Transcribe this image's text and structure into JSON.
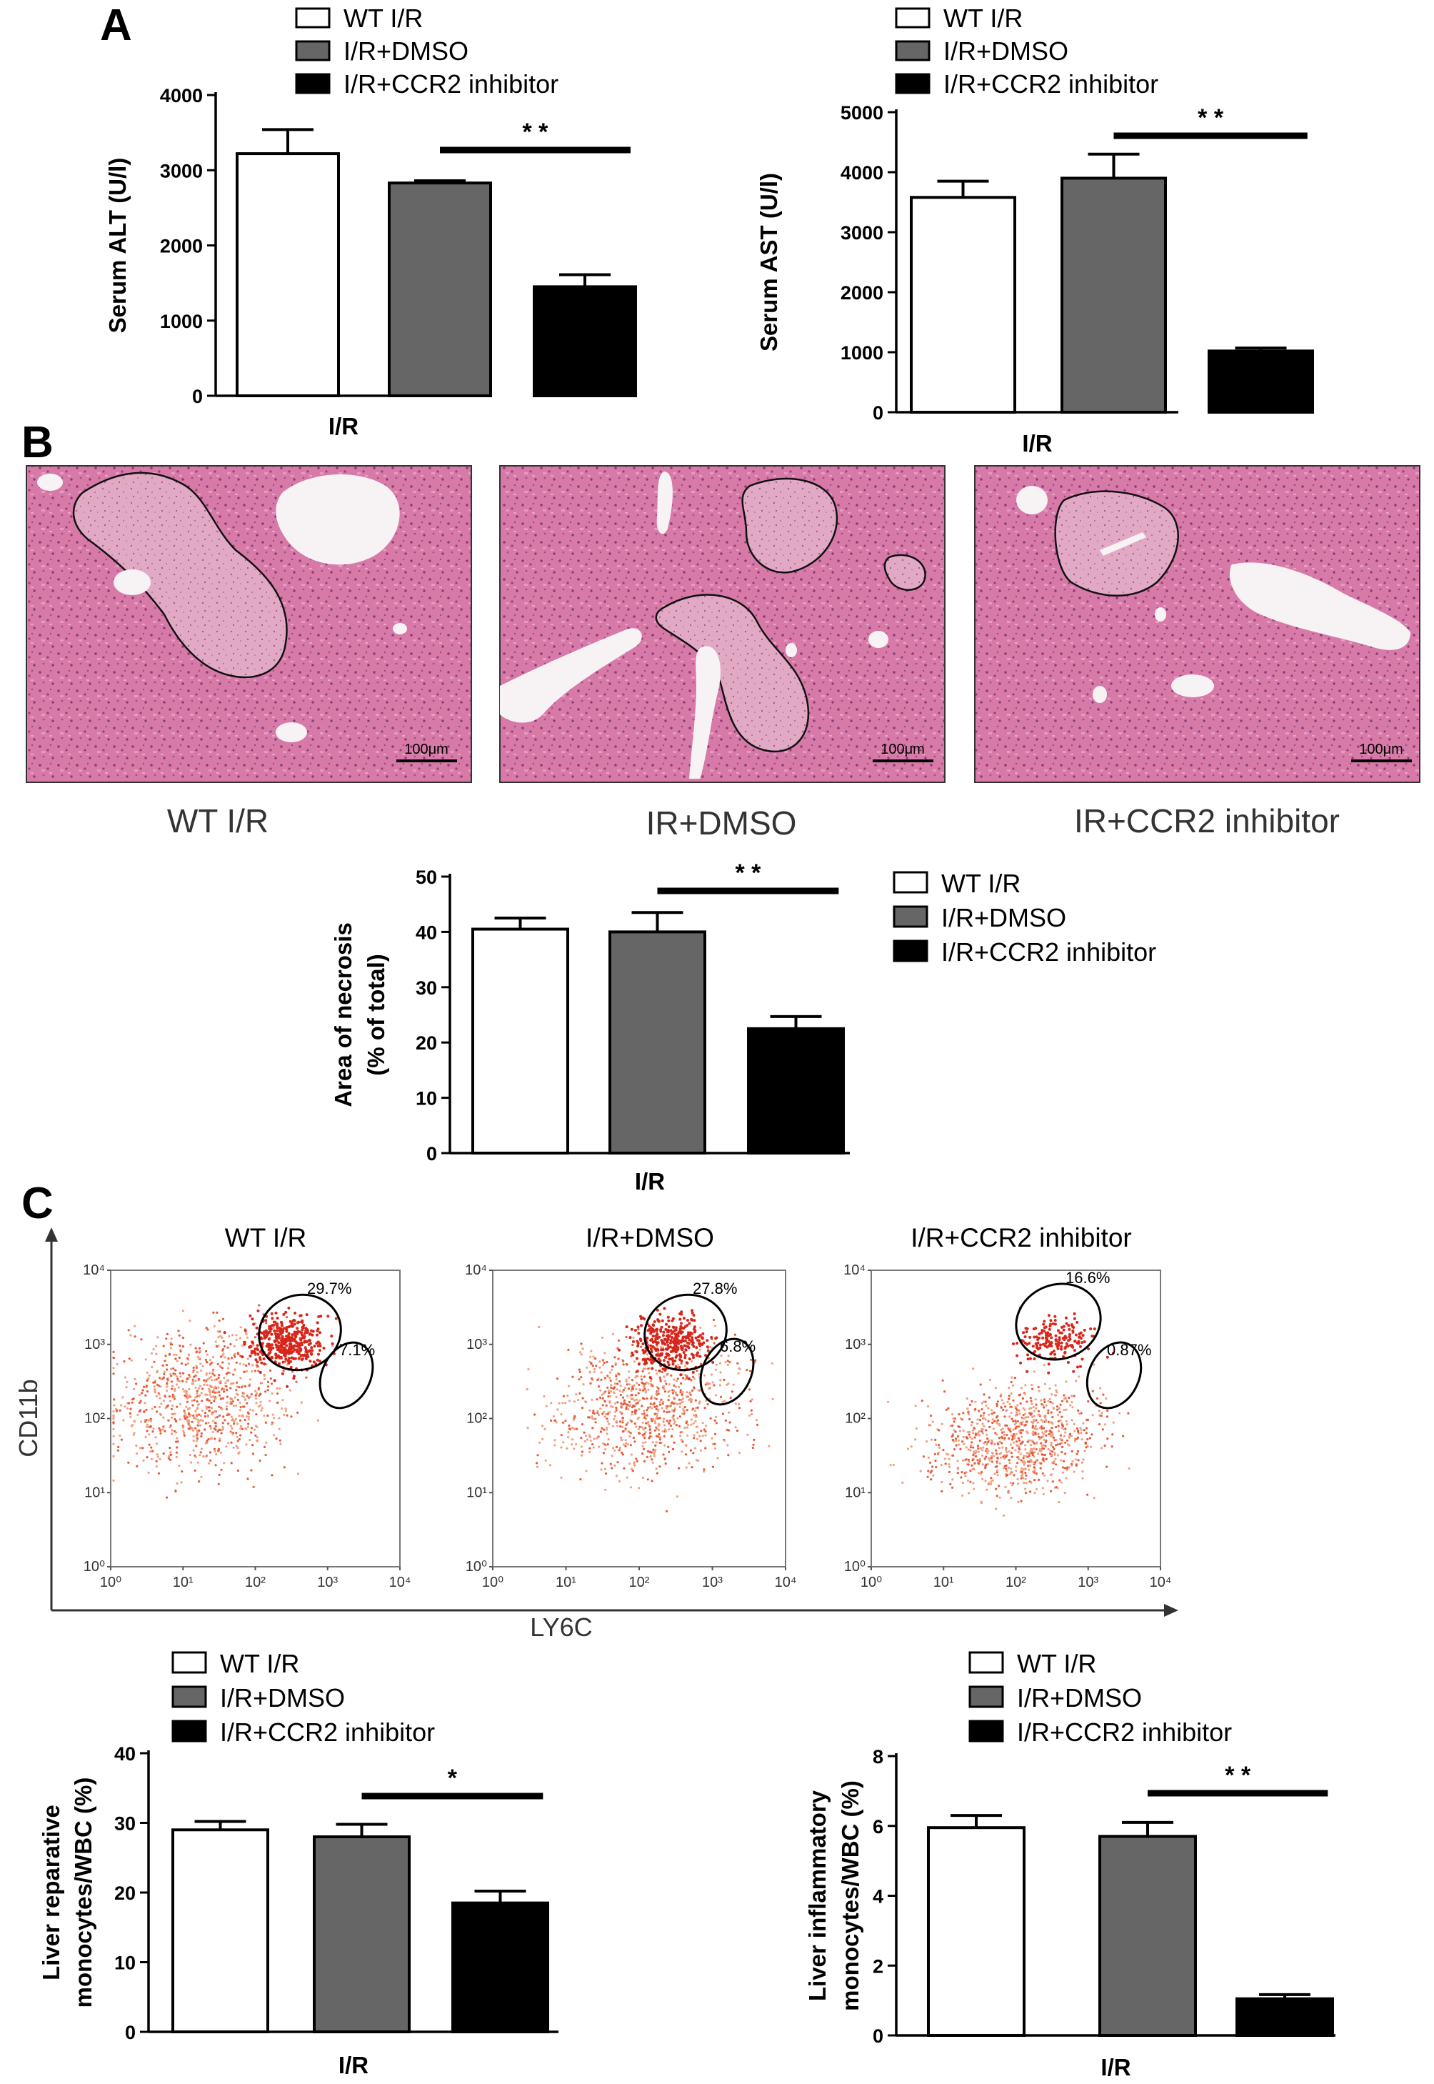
{
  "panels": {
    "a": "A",
    "b": "B",
    "c": "C"
  },
  "legend_groups": [
    "WT I/R",
    "I/R+DMSO",
    "I/R+CCR2 inhibitor"
  ],
  "colors": {
    "wt": "#ffffff",
    "dmso": "#666666",
    "ccr2": "#000000",
    "axis": "#000000",
    "dots": "#e23a1a"
  },
  "histology": {
    "captions": [
      "WT I/R",
      "IR+DMSO",
      "IR+CCR2 inhibitor"
    ],
    "scale_bar": "100μm"
  },
  "flow": {
    "y_label": "CD11b",
    "x_label": "LY6C",
    "tick_labels": [
      "10⁰",
      "10¹",
      "10²",
      "10³",
      "10⁴"
    ],
    "plots": [
      {
        "title": "WT I/R",
        "upper_gate_pct": "29.7%",
        "lower_gate_pct": "7.1%"
      },
      {
        "title": "I/R+DMSO",
        "upper_gate_pct": "27.8%",
        "lower_gate_pct": "6.8%"
      },
      {
        "title": "I/R+CCR2 inhibitor",
        "upper_gate_pct": "16.6%",
        "lower_gate_pct": "0.87%"
      }
    ]
  },
  "chart_data": [
    {
      "id": "alt",
      "type": "bar",
      "ylabel": "Serum ALT (U/l)",
      "xlabel": "I/R",
      "categories": [
        "WT I/R",
        "I/R+DMSO",
        "I/R+CCR2 inhibitor"
      ],
      "values": [
        3220,
        2830,
        1450
      ],
      "errors": [
        320,
        30,
        160
      ],
      "ylim": [
        0,
        4000
      ],
      "yticks": [
        0,
        1000,
        2000,
        3000,
        4000
      ],
      "significance": {
        "from": 1,
        "to": 2,
        "label": "* *"
      },
      "legend": "top"
    },
    {
      "id": "ast",
      "type": "bar",
      "ylabel": "Serum AST (U/l)",
      "xlabel": "I/R",
      "categories": [
        "WT I/R",
        "I/R+DMSO",
        "I/R+CCR2 inhibitor"
      ],
      "values": [
        3580,
        3900,
        1020
      ],
      "errors": [
        270,
        400,
        50
      ],
      "ylim": [
        0,
        5000
      ],
      "yticks": [
        0,
        1000,
        2000,
        3000,
        4000,
        5000
      ],
      "significance": {
        "from": 1,
        "to": 2,
        "label": "* *"
      },
      "legend": "top"
    },
    {
      "id": "necrosis",
      "type": "bar",
      "ylabel": [
        "Area of necrosis",
        "(% of total)"
      ],
      "xlabel": "I/R",
      "categories": [
        "WT I/R",
        "I/R+DMSO",
        "I/R+CCR2 inhibitor"
      ],
      "values": [
        40.5,
        40.0,
        22.5
      ],
      "errors": [
        2.0,
        3.5,
        2.2
      ],
      "ylim": [
        0,
        50
      ],
      "yticks": [
        0,
        10,
        20,
        30,
        40,
        50
      ],
      "significance": {
        "from": 1,
        "to": 2,
        "label": "* *"
      },
      "legend": "right"
    },
    {
      "id": "reparative",
      "type": "bar",
      "ylabel": [
        "Liver reparative",
        "monocytes/WBC (%)"
      ],
      "xlabel": "I/R",
      "categories": [
        "WT I/R",
        "I/R+DMSO",
        "I/R+CCR2 inhibitor"
      ],
      "values": [
        29.0,
        28.0,
        18.5
      ],
      "errors": [
        1.2,
        1.8,
        1.7
      ],
      "ylim": [
        0,
        40
      ],
      "yticks": [
        0,
        10,
        20,
        30,
        40
      ],
      "significance": {
        "from": 1,
        "to": 2,
        "label": "*"
      },
      "legend": "top"
    },
    {
      "id": "inflammatory",
      "type": "bar",
      "ylabel": [
        "Liver inflammatory",
        "monocytes/WBC (%)"
      ],
      "xlabel": "I/R",
      "categories": [
        "WT I/R",
        "I/R+DMSO",
        "I/R+CCR2 inhibitor"
      ],
      "values": [
        5.95,
        5.7,
        1.05
      ],
      "errors": [
        0.35,
        0.4,
        0.12
      ],
      "ylim": [
        0,
        8
      ],
      "yticks": [
        0,
        2,
        4,
        6,
        8
      ],
      "significance": {
        "from": 1,
        "to": 2,
        "label": "* *"
      },
      "legend": "top"
    }
  ]
}
